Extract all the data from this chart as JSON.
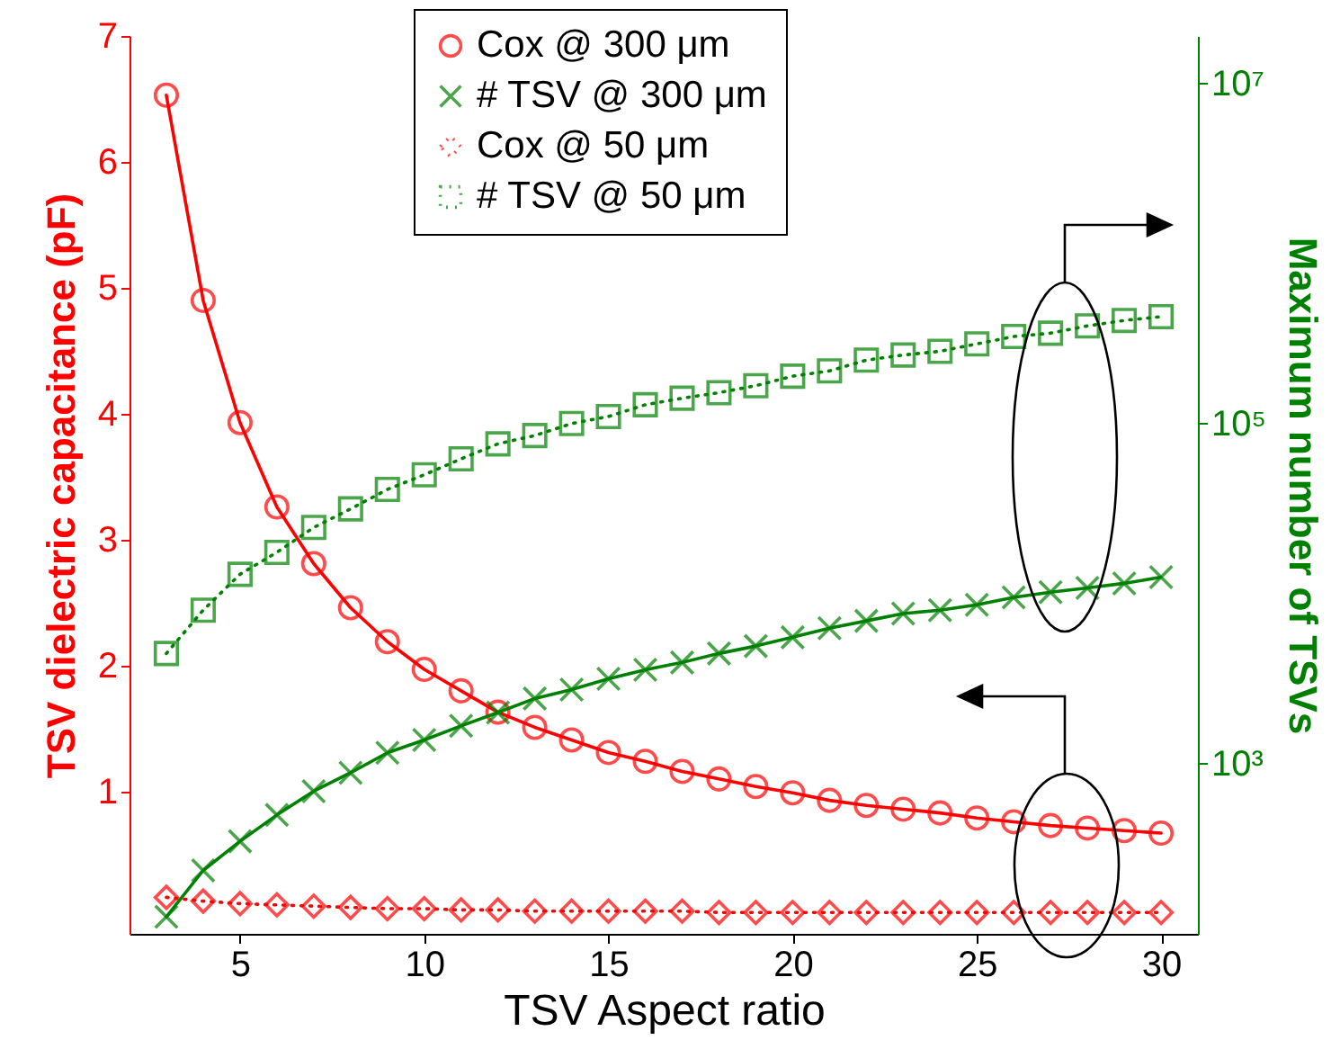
{
  "chart_data": {
    "type": "line",
    "xlabel": "TSV Aspect ratio",
    "ylabel": "TSV dielectric capacitance (pF)",
    "y2label": "Maximum number of TSVs",
    "x": [
      3,
      4,
      5,
      6,
      7,
      8,
      9,
      10,
      11,
      12,
      13,
      14,
      15,
      16,
      17,
      18,
      19,
      20,
      21,
      22,
      23,
      24,
      25,
      26,
      27,
      28,
      29,
      30
    ],
    "xlim": [
      2,
      31
    ],
    "xticks": [
      5,
      10,
      15,
      20,
      25,
      30
    ],
    "ylim": [
      -0.13,
      7
    ],
    "yticks": [
      1,
      2,
      3,
      4,
      5,
      6,
      7
    ],
    "y2lim": [
      100,
      19000000
    ],
    "y2ticks": [
      {
        "value": 1000,
        "label": "10³"
      },
      {
        "value": 100000,
        "label": "10⁵"
      },
      {
        "value": 10000000,
        "label": "10⁷"
      }
    ],
    "log": "y2",
    "legend": "top",
    "grid": false,
    "series": [
      {
        "name": "Cox @ 300 μm",
        "color": "#ff0000",
        "marker": "circle",
        "line_style": "solid",
        "values": [
          6.53,
          4.9,
          3.93,
          3.26,
          2.81,
          2.46,
          2.19,
          1.97,
          1.8,
          1.63,
          1.51,
          1.41,
          1.31,
          1.24,
          1.16,
          1.1,
          1.04,
          0.99,
          0.93,
          0.89,
          0.86,
          0.83,
          0.79,
          0.76,
          0.73,
          0.71,
          0.69,
          0.67
        ]
      },
      {
        "name": "# TSV @ 300 μm",
        "color": "#008000",
        "marker": "cross",
        "line_style": "solid",
        "axis": "y2",
        "values": [
          126,
          236,
          350,
          500,
          690,
          885,
          1160,
          1380,
          1670,
          2000,
          2420,
          2730,
          3160,
          3570,
          3940,
          4450,
          4920,
          5540,
          6270,
          6920,
          7640,
          8000,
          8600,
          9500,
          10200,
          10800,
          11500,
          12500
        ]
      },
      {
        "name": "Cox @ 50 μm",
        "color": "#ff0000",
        "marker": "diamond",
        "line_style": "dotted",
        "values": [
          0.16,
          0.13,
          0.11,
          0.1,
          0.09,
          0.08,
          0.07,
          0.07,
          0.06,
          0.06,
          0.05,
          0.05,
          0.05,
          0.05,
          0.05,
          0.04,
          0.04,
          0.04,
          0.04,
          0.04,
          0.04,
          0.04,
          0.04,
          0.04,
          0.04,
          0.04,
          0.04,
          0.04
        ]
      },
      {
        "name": "# TSV @ 50 μm",
        "color": "#008000",
        "marker": "square",
        "line_style": "dotted",
        "axis": "y2",
        "values": [
          4450,
          8000,
          13000,
          17500,
          24500,
          31500,
          41000,
          50000,
          62000,
          76000,
          85000,
          100000,
          110000,
          129000,
          141000,
          152000,
          167000,
          190000,
          204000,
          236000,
          253000,
          266000,
          294000,
          325000,
          340000,
          375000,
          404000,
          425000
        ]
      }
    ]
  }
}
